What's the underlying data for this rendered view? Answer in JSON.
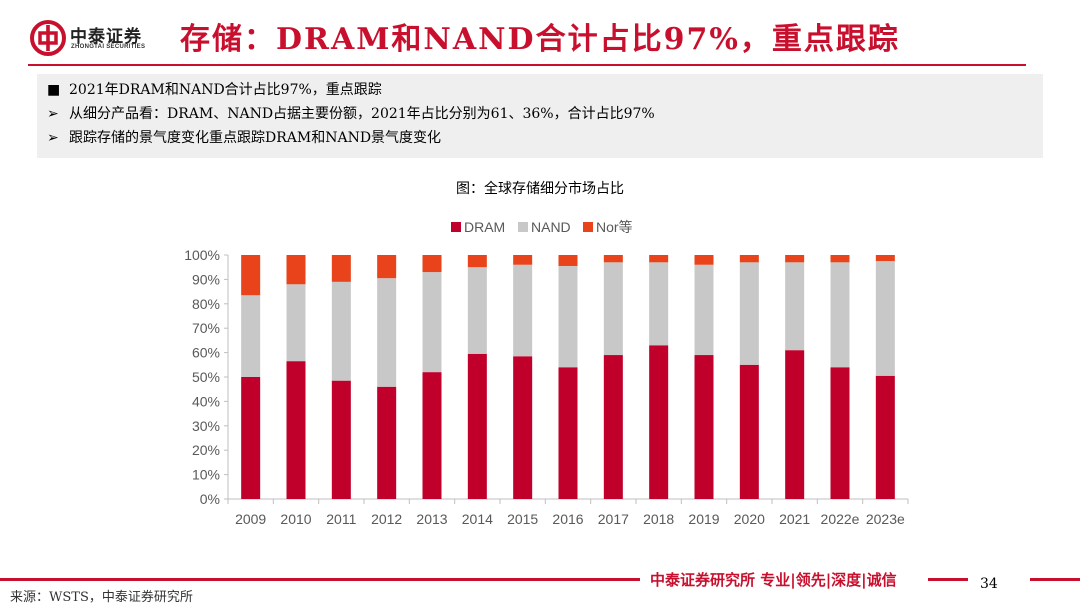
{
  "header": {
    "logo_cn": "中泰证券",
    "logo_en": "ZHONGTAI SECURITIES",
    "title": "存储：DRAM和NAND合计占比97%，重点跟踪"
  },
  "summary": {
    "bullets": [
      {
        "marker": "■",
        "text": "2021年DRAM和NAND合计占比97%，重点跟踪"
      },
      {
        "marker": "➢",
        "text": "从细分产品看：DRAM、NAND占据主要份额，2021年占比分别为61、36%，合计占比97%"
      },
      {
        "marker": "➢",
        "text": "跟踪存储的景气度变化重点跟踪DRAM和NAND景气度变化"
      }
    ]
  },
  "chart_data": {
    "type": "bar",
    "stacked": true,
    "title": "图：全球存储细分市场占比",
    "categories": [
      "2009",
      "2010",
      "2011",
      "2012",
      "2013",
      "2014",
      "2015",
      "2016",
      "2017",
      "2018",
      "2019",
      "2020",
      "2021",
      "2022e",
      "2023e"
    ],
    "series": [
      {
        "name": "DRAM",
        "color": "#c0002b",
        "values": [
          50,
          56.5,
          48.5,
          46,
          52,
          59.5,
          58.5,
          54,
          59,
          63,
          59,
          55,
          61,
          54,
          50.5
        ]
      },
      {
        "name": "NAND",
        "color": "#c8c8c8",
        "values": [
          33.5,
          31.5,
          40.5,
          44.5,
          41,
          35.5,
          37.5,
          41.5,
          38,
          34,
          37,
          42,
          36,
          43,
          47
        ]
      },
      {
        "name": "Nor等",
        "color": "#e8431a",
        "values": [
          16.5,
          12,
          11,
          9.5,
          7,
          5,
          4,
          4.5,
          3,
          3,
          4,
          3,
          3,
          3,
          2.5
        ]
      }
    ],
    "ylim": [
      0,
      100
    ],
    "yticks": [
      "0%",
      "10%",
      "20%",
      "30%",
      "40%",
      "50%",
      "60%",
      "70%",
      "80%",
      "90%",
      "100%"
    ],
    "legend_position": "top",
    "xlabel": "",
    "ylabel": ""
  },
  "footer": {
    "slogan": "中泰证券研究所 专业|领先|深度|诚信",
    "page_number": "34",
    "source": "来源：WSTS，中泰证券研究所"
  },
  "colors": {
    "brand_red": "#c8102e",
    "dram": "#c0002b",
    "nand": "#c8c8c8",
    "nor": "#e8431a"
  }
}
